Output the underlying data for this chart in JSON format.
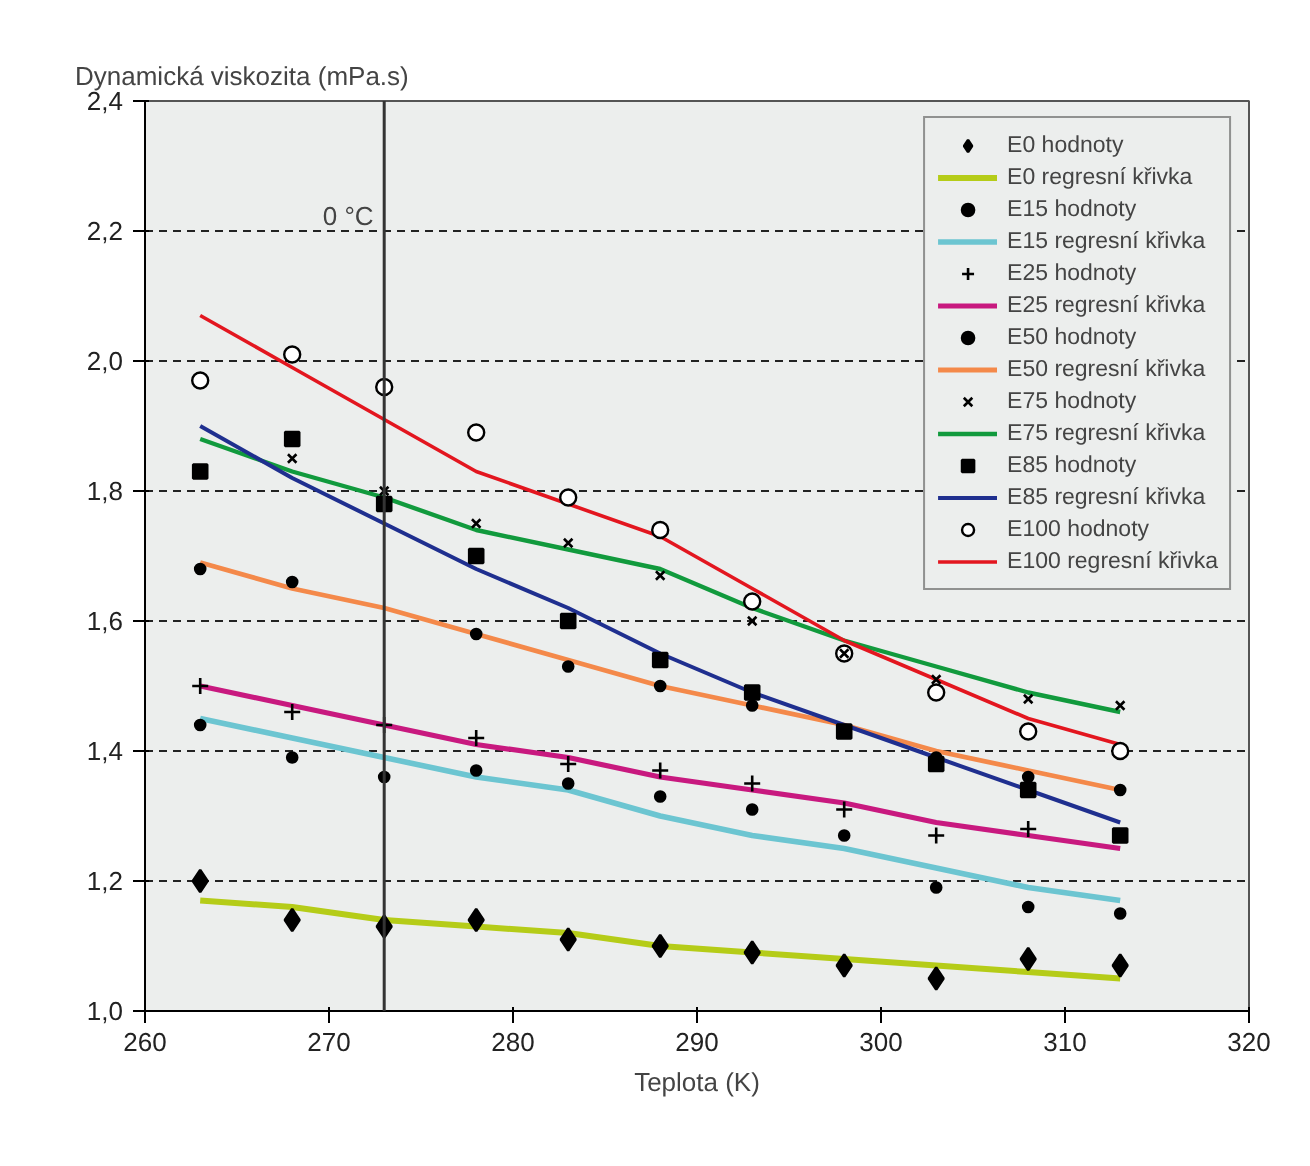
{
  "chart_data": {
    "type": "scatter",
    "xlabel": "Teplota (K)",
    "ylabel": "Dynamická viskozita  (mPa.s)",
    "x": [
      263,
      268,
      273,
      278,
      283,
      288,
      293,
      298,
      303,
      308,
      313
    ],
    "xlim": [
      260,
      320
    ],
    "xticks": [
      260,
      270,
      280,
      290,
      300,
      310,
      320
    ],
    "ylim": [
      1.0,
      2.4
    ],
    "yticks": [
      {
        "value": 1.0,
        "label": "1,0"
      },
      {
        "value": 1.2,
        "label": "1,2"
      },
      {
        "value": 1.4,
        "label": "1,4"
      },
      {
        "value": 1.6,
        "label": "1,6"
      },
      {
        "value": 1.8,
        "label": "1,8"
      },
      {
        "value": 2.0,
        "label": "2,0"
      },
      {
        "value": 2.2,
        "label": "2,2"
      },
      {
        "value": 2.4,
        "label": "2,4"
      }
    ],
    "grid": "y",
    "legend": "top right",
    "ref_lines": [
      {
        "axis": "x",
        "value": 273,
        "label": "0 °C",
        "color": "#333333"
      }
    ],
    "series": [
      {
        "name": "E0 hodnoty",
        "marker": "diamond",
        "color": "#000000",
        "values": [
          1.2,
          1.14,
          1.13,
          1.14,
          1.11,
          1.1,
          1.09,
          1.07,
          1.05,
          1.08,
          1.07
        ]
      },
      {
        "name": "E0 regresní křivka",
        "type": "line",
        "color": "#b5cc18",
        "values": [
          1.17,
          1.16,
          1.14,
          1.13,
          1.12,
          1.1,
          1.09,
          1.08,
          1.07,
          1.06,
          1.05
        ]
      },
      {
        "name": "E15 hodnoty",
        "marker": "circle",
        "color": "#000000",
        "values": [
          1.44,
          1.39,
          1.36,
          1.37,
          1.35,
          1.33,
          1.31,
          1.27,
          1.19,
          1.16,
          1.15
        ]
      },
      {
        "name": "E15 regresní křivka",
        "type": "line",
        "color": "#6cc5d1",
        "values": [
          1.45,
          1.42,
          1.39,
          1.36,
          1.34,
          1.3,
          1.27,
          1.25,
          1.22,
          1.19,
          1.17
        ]
      },
      {
        "name": "E25 hodnoty",
        "marker": "cross",
        "color": "#000000",
        "values": [
          1.5,
          1.46,
          1.44,
          1.42,
          1.38,
          1.37,
          1.35,
          1.31,
          1.27,
          1.28,
          null
        ]
      },
      {
        "name": "E25 regresní křivka",
        "type": "line",
        "color": "#c8197f",
        "values": [
          1.5,
          1.47,
          1.44,
          1.41,
          1.39,
          1.36,
          1.34,
          1.32,
          1.29,
          1.27,
          1.25
        ]
      },
      {
        "name": "E50 hodnoty",
        "marker": "circle",
        "color": "#000000",
        "values": [
          1.68,
          1.66,
          null,
          1.58,
          1.53,
          1.5,
          1.47,
          null,
          1.39,
          1.36,
          1.34
        ]
      },
      {
        "name": "E50 regresní křivka",
        "type": "line",
        "color": "#f4894a",
        "values": [
          1.69,
          1.65,
          1.62,
          1.58,
          1.54,
          1.5,
          1.47,
          1.44,
          1.4,
          1.37,
          1.34
        ]
      },
      {
        "name": "E75 hodnoty",
        "marker": "x",
        "color": "#000000",
        "values": [
          null,
          1.85,
          1.8,
          1.75,
          1.72,
          1.67,
          1.6,
          1.55,
          1.51,
          1.48,
          1.47
        ]
      },
      {
        "name": "E75 regresní křivka",
        "type": "line",
        "color": "#119a3d",
        "values": [
          1.88,
          1.83,
          1.79,
          1.74,
          1.71,
          1.68,
          1.62,
          1.57,
          1.53,
          1.49,
          1.46
        ]
      },
      {
        "name": "E85 hodnoty",
        "marker": "square",
        "color": "#000000",
        "values": [
          1.83,
          1.88,
          1.78,
          1.7,
          1.6,
          1.54,
          1.49,
          1.43,
          1.38,
          1.34,
          1.27
        ]
      },
      {
        "name": "E85 regresní křivka",
        "type": "line",
        "color": "#1f2f8f",
        "values": [
          1.9,
          1.82,
          1.75,
          1.68,
          1.62,
          1.55,
          1.49,
          1.44,
          1.39,
          1.34,
          1.29
        ]
      },
      {
        "name": "E100 hodnoty",
        "marker": "circle_open",
        "color": "#000000",
        "values": [
          1.97,
          2.01,
          1.96,
          1.89,
          1.79,
          1.74,
          1.63,
          1.55,
          1.49,
          1.43,
          1.4
        ]
      },
      {
        "name": "E100 regresní křivka",
        "type": "line",
        "color": "#e3161f",
        "values": [
          2.07,
          1.99,
          1.91,
          1.83,
          1.78,
          1.73,
          1.65,
          1.57,
          1.51,
          1.45,
          1.41
        ]
      }
    ]
  }
}
